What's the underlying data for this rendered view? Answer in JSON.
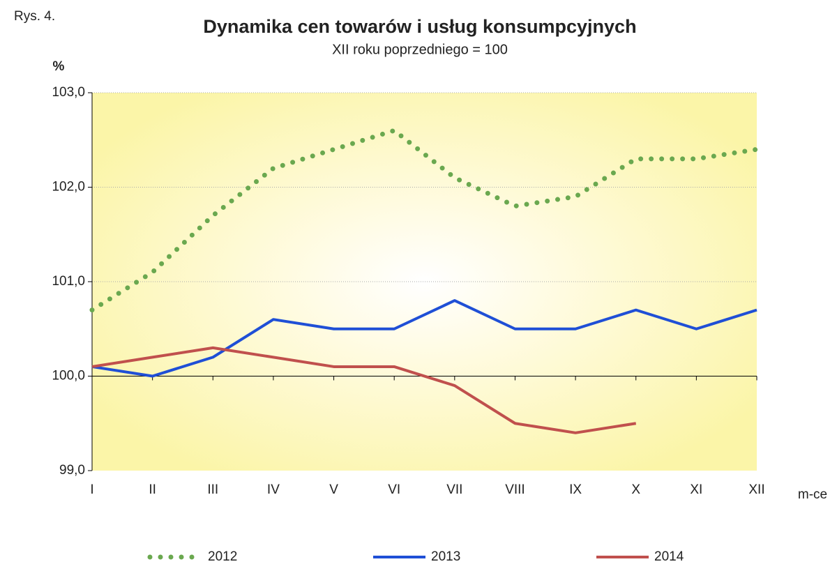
{
  "figure_label": "Rys. 4.",
  "chart_data": {
    "type": "line",
    "title": "Dynamika cen towarów i usług konsumpcyjnych",
    "subtitle": "XII roku poprzedniego = 100",
    "y_label": "%",
    "x_label": "m-ce",
    "categories": [
      "I",
      "II",
      "III",
      "IV",
      "V",
      "VI",
      "VII",
      "VIII",
      "IX",
      "X",
      "XI",
      "XII"
    ],
    "series": [
      {
        "name": "2012",
        "color": "#6aa84f",
        "style": "dotted",
        "values": [
          100.7,
          101.1,
          101.7,
          102.2,
          102.4,
          102.6,
          102.1,
          101.8,
          101.9,
          102.3,
          102.3,
          102.4
        ]
      },
      {
        "name": "2013",
        "color": "#1f4fd6",
        "style": "solid",
        "values": [
          100.1,
          100.0,
          100.2,
          100.6,
          100.5,
          100.5,
          100.8,
          100.5,
          100.5,
          100.7,
          100.5,
          100.7
        ]
      },
      {
        "name": "2014",
        "color": "#c0504d",
        "style": "solid",
        "values": [
          100.1,
          100.2,
          100.3,
          100.2,
          100.1,
          100.1,
          99.9,
          99.5,
          99.4,
          99.5,
          null,
          null
        ]
      }
    ],
    "ylim": [
      99.0,
      103.0
    ],
    "yticks": [
      {
        "value": 99.0,
        "label": "99,0"
      },
      {
        "value": 100.0,
        "label": "100,0"
      },
      {
        "value": 101.0,
        "label": "101,0"
      },
      {
        "value": 102.0,
        "label": "102,0"
      },
      {
        "value": 103.0,
        "label": "103,0"
      }
    ],
    "x_axis_at": 100.0,
    "grid": true,
    "legend": "bottom"
  }
}
